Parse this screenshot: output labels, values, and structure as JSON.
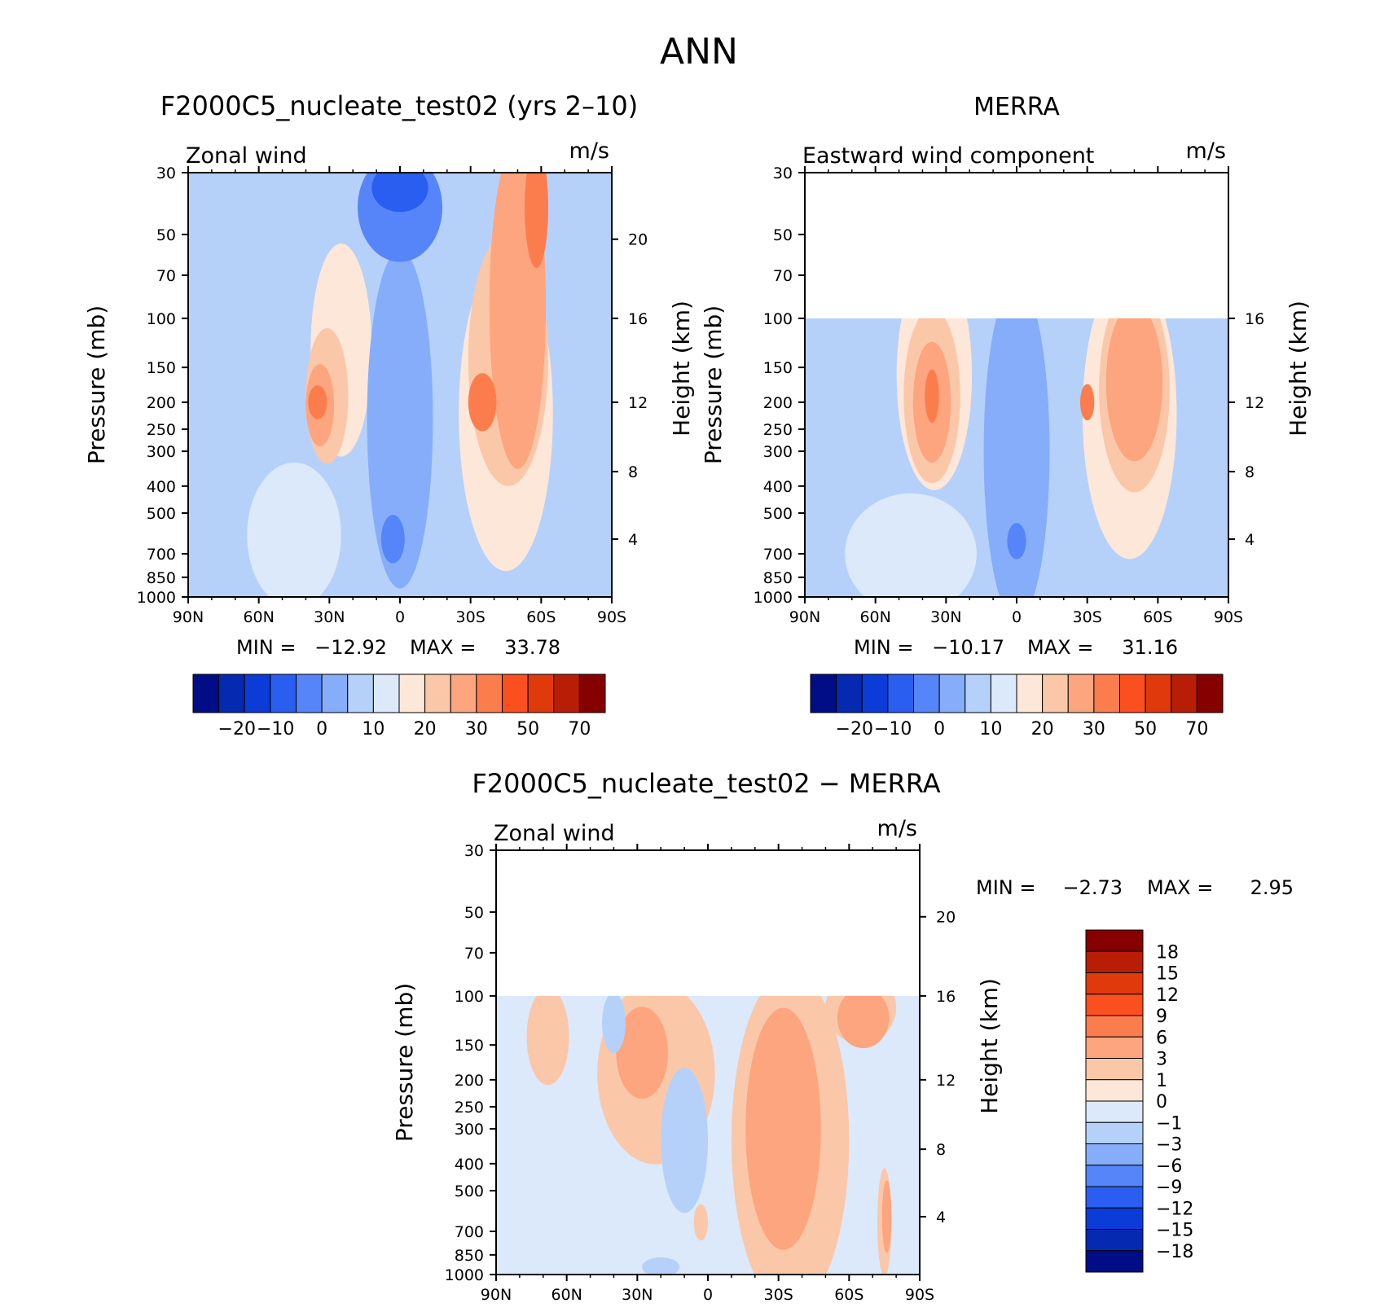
{
  "page_title": "ANN",
  "colors": {
    "pos_ramp": [
      "#fde7d9",
      "#fbc7a9",
      "#fca57e",
      "#fb7d4d",
      "#fb4f20",
      "#e03a0c",
      "#b81e05",
      "#870000"
    ],
    "neg_ramp": [
      "#dbe9fb",
      "#b5d1fa",
      "#86adfa",
      "#5585f8",
      "#2a5ef0",
      "#0b3cd8",
      "#0529b0",
      "#000d86"
    ]
  },
  "chart_data": [
    {
      "id": "model",
      "type": "heatmap",
      "title": "F2000C5_nucleate_test02 (yrs 2–10)",
      "left_label": "Zonal wind",
      "units": "m/s",
      "ylabel": "Pressure (mb)",
      "ylabel_right": "Height (km)",
      "xlim": [
        90,
        -90
      ],
      "ylim": [
        1000,
        30
      ],
      "x_ticks": [
        "90N",
        "60N",
        "30N",
        "0",
        "30S",
        "60S",
        "90S"
      ],
      "y_ticks": [
        "30",
        "50",
        "70",
        "100",
        "150",
        "200",
        "250",
        "300",
        "400",
        "500",
        "700",
        "850",
        "1000"
      ],
      "height_ticks": [
        "20",
        "16",
        "12",
        "8",
        "4"
      ],
      "stats": {
        "min_label": "MIN =",
        "min": "−12.92",
        "max_label": "MAX =",
        "max": "33.78"
      },
      "colorbar_labels": [
        "−20",
        "−10",
        "0",
        "10",
        "20",
        "30",
        "50",
        "70"
      ],
      "regions": [
        {
          "level": 0,
          "x": 25,
          "p": 130,
          "rx": 13,
          "rp": 0.88
        },
        {
          "level": 1,
          "x": 31,
          "p": 190,
          "rx": 9,
          "rp": 0.56
        },
        {
          "level": 2,
          "x": 34,
          "p": 205,
          "rx": 6,
          "rp": 0.34
        },
        {
          "level": 3,
          "x": 35,
          "p": 200,
          "rx": 4,
          "rp": 0.14
        },
        {
          "level": -1,
          "x": 45,
          "p": 600,
          "rx": 20,
          "rp": 0.6
        },
        {
          "level": -3,
          "x": 0,
          "p": 230,
          "rx": 14,
          "rp": 1.4
        },
        {
          "level": -4,
          "x": 0,
          "p": 40,
          "rx": 18,
          "rp": 0.45
        },
        {
          "level": -5,
          "x": 0,
          "p": 34,
          "rx": 12,
          "rp": 0.2
        },
        {
          "level": -4,
          "x": 3,
          "p": 620,
          "rx": 5,
          "rp": 0.2
        },
        {
          "level": -2,
          "x": -80,
          "p": 400,
          "rx": 12,
          "rp": 1.4
        },
        {
          "level": 0,
          "x": -45,
          "p": 220,
          "rx": 20,
          "rp": 1.3
        },
        {
          "level": 1,
          "x": -46,
          "p": 140,
          "rx": 17,
          "rp": 1.05
        },
        {
          "level": 2,
          "x": -50,
          "p": 90,
          "rx": 12,
          "rp": 1.35
        },
        {
          "level": 3,
          "x": -58,
          "p": 40,
          "rx": 5,
          "rp": 0.5
        },
        {
          "level": 3,
          "x": -35,
          "p": 200,
          "rx": 6,
          "rp": 0.24
        }
      ]
    },
    {
      "id": "obs",
      "type": "heatmap",
      "title": "MERRA",
      "left_label": "Eastward wind component",
      "units": "m/s",
      "ylabel": "Pressure (mb)",
      "ylabel_right": "Height (km)",
      "xlim": [
        90,
        -90
      ],
      "ylim": [
        1000,
        30
      ],
      "data_top": 100,
      "x_ticks": [
        "90N",
        "60N",
        "30N",
        "0",
        "30S",
        "60S",
        "90S"
      ],
      "y_ticks": [
        "30",
        "50",
        "70",
        "100",
        "150",
        "200",
        "250",
        "300",
        "400",
        "500",
        "700",
        "850",
        "1000"
      ],
      "height_ticks": [
        "16",
        "12",
        "8",
        "4"
      ],
      "stats": {
        "min_label": "MIN =",
        "min": "−10.17",
        "max_label": "MAX =",
        "max": "31.16"
      },
      "colorbar_labels": [
        "−20",
        "−10",
        "0",
        "10",
        "20",
        "30",
        "50",
        "70"
      ],
      "regions": [
        {
          "level": 0,
          "x": 35,
          "p": 160,
          "rx": 16,
          "rp": 0.95
        },
        {
          "level": 1,
          "x": 36,
          "p": 190,
          "rx": 12,
          "rp": 0.72
        },
        {
          "level": 2,
          "x": 36,
          "p": 200,
          "rx": 8,
          "rp": 0.5
        },
        {
          "level": 3,
          "x": 36,
          "p": 190,
          "rx": 3,
          "rp": 0.22
        },
        {
          "level": -1,
          "x": 45,
          "p": 700,
          "rx": 28,
          "rp": 0.5
        },
        {
          "level": -3,
          "x": 0,
          "p": 300,
          "rx": 14,
          "rp": 1.4
        },
        {
          "level": -4,
          "x": 0,
          "p": 630,
          "rx": 4,
          "rp": 0.15
        },
        {
          "level": -2,
          "x": -80,
          "p": 450,
          "rx": 12,
          "rp": 1.3
        },
        {
          "level": 0,
          "x": -48,
          "p": 220,
          "rx": 20,
          "rp": 1.2
        },
        {
          "level": 1,
          "x": -50,
          "p": 180,
          "rx": 15,
          "rp": 0.85
        },
        {
          "level": 2,
          "x": -50,
          "p": 170,
          "rx": 12,
          "rp": 0.65
        },
        {
          "level": 3,
          "x": -30,
          "p": 200,
          "rx": 3,
          "rp": 0.15
        }
      ]
    },
    {
      "id": "diff",
      "type": "heatmap",
      "title": "F2000C5_nucleate_test02 − MERRA",
      "left_label": "Zonal wind",
      "units": "m/s",
      "ylabel": "Pressure (mb)",
      "ylabel_right": "Height (km)",
      "xlim": [
        90,
        -90
      ],
      "ylim": [
        1000,
        30
      ],
      "data_top": 100,
      "x_ticks": [
        "90N",
        "60N",
        "30N",
        "0",
        "30S",
        "60S",
        "90S"
      ],
      "y_ticks": [
        "30",
        "50",
        "70",
        "100",
        "150",
        "200",
        "250",
        "300",
        "400",
        "500",
        "700",
        "850",
        "1000"
      ],
      "height_ticks": [
        "20",
        "16",
        "12",
        "8",
        "4"
      ],
      "stats": {
        "min_label": "MIN =",
        "min": "−2.73",
        "max_label": "MAX =",
        "max": "2.95"
      },
      "colorbar_labels": [
        "18",
        "15",
        "12",
        "9",
        "6",
        "3",
        "1",
        "0",
        "−1",
        "−3",
        "−6",
        "−9",
        "−12",
        "−15",
        "−18"
      ],
      "regions": [
        {
          "level": 1,
          "x": 68,
          "p": 140,
          "rx": 9,
          "rp": 0.4
        },
        {
          "level": 1,
          "x": 22,
          "p": 190,
          "rx": 25,
          "rp": 0.75
        },
        {
          "level": 1,
          "x": -35,
          "p": 330,
          "rx": 25,
          "rp": 1.4
        },
        {
          "level": 1,
          "x": -65,
          "p": 110,
          "rx": 15,
          "rp": 0.3
        },
        {
          "level": 1,
          "x": -75,
          "p": 650,
          "rx": 3,
          "rp": 0.45
        },
        {
          "level": 2,
          "x": 28,
          "p": 160,
          "rx": 11,
          "rp": 0.38
        },
        {
          "level": 2,
          "x": -32,
          "p": 300,
          "rx": 16,
          "rp": 1.0
        },
        {
          "level": 2,
          "x": -66,
          "p": 120,
          "rx": 11,
          "rp": 0.25
        },
        {
          "level": 2,
          "x": -76,
          "p": 620,
          "rx": 2,
          "rp": 0.3
        },
        {
          "level": -2,
          "x": 10,
          "p": 330,
          "rx": 10,
          "rp": 0.6
        },
        {
          "level": -2,
          "x": 40,
          "p": 125,
          "rx": 5,
          "rp": 0.25
        },
        {
          "level": -2,
          "x": 20,
          "p": 940,
          "rx": 8,
          "rp": 0.08
        },
        {
          "level": 1,
          "x": 3,
          "p": 650,
          "rx": 3,
          "rp": 0.15
        }
      ]
    }
  ]
}
